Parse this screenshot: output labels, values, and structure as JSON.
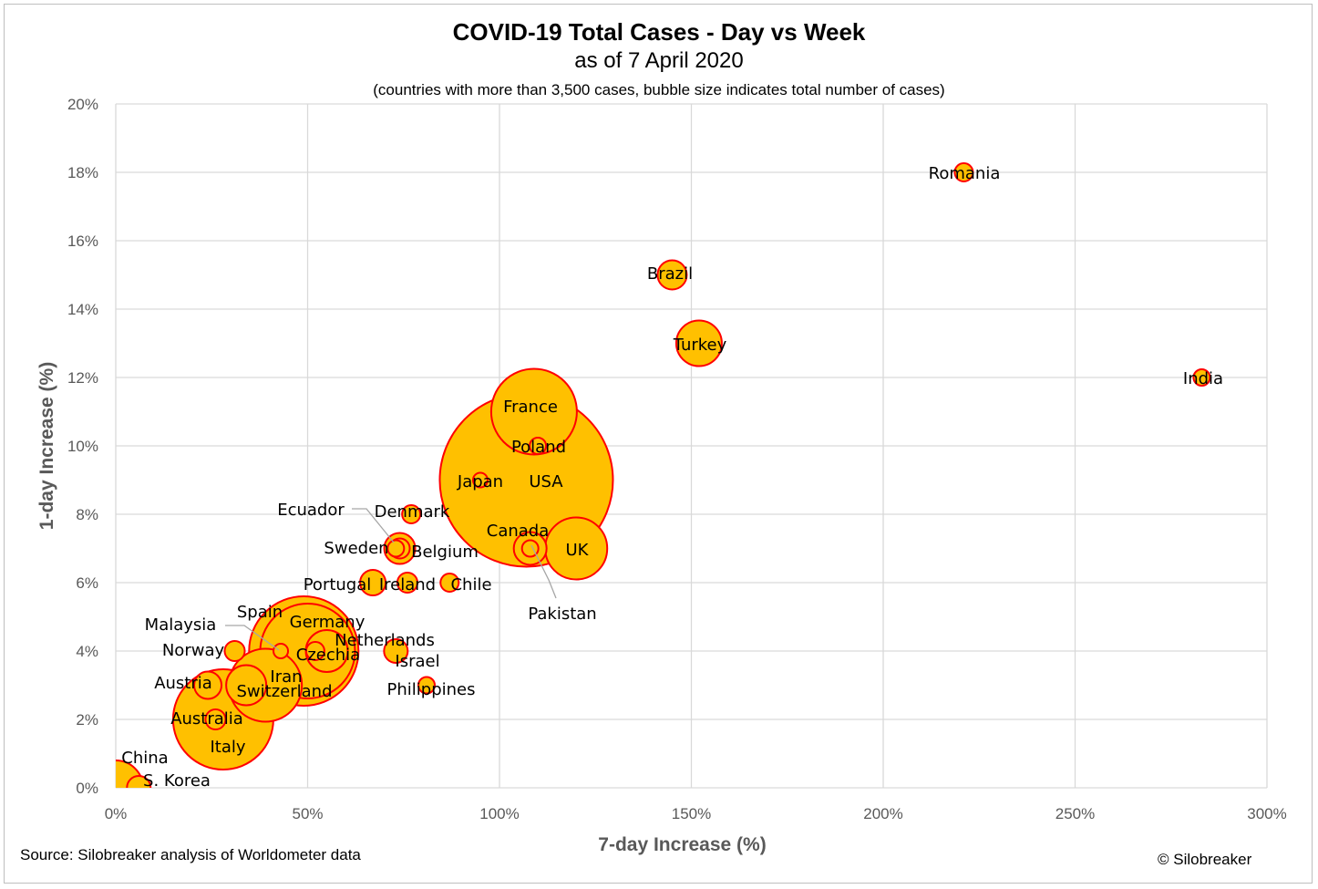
{
  "chart_data": {
    "type": "bubble",
    "title": "COVID-19 Total Cases - Day vs Week",
    "subtitle": "as of 7 April 2020",
    "note": "(countries with more than 3,500 cases, bubble size indicates total number of cases)",
    "xlabel": "7-day Increase (%)",
    "ylabel": "1-day Increase (%)",
    "xlim": [
      0,
      300
    ],
    "ylim": [
      0,
      20
    ],
    "x_ticks": [
      "0%",
      "50%",
      "100%",
      "150%",
      "200%",
      "250%",
      "300%"
    ],
    "y_ticks": [
      "0%",
      "2%",
      "4%",
      "6%",
      "8%",
      "10%",
      "12%",
      "14%",
      "16%",
      "18%",
      "20%"
    ],
    "grid": true,
    "colors": {
      "fill": "#FFC000",
      "stroke": "#FF0000",
      "grid": "#d9d9d9",
      "leader": "#a6a6a6"
    },
    "points": [
      {
        "label": "Romania",
        "x": 221,
        "y": 18
      },
      {
        "label": "Brazil",
        "x": 145,
        "y": 15
      },
      {
        "label": "Turkey",
        "x": 152,
        "y": 13
      },
      {
        "label": "India",
        "x": 283,
        "y": 12
      },
      {
        "label": "France",
        "x": 109,
        "y": 11
      },
      {
        "label": "Poland",
        "x": 110,
        "y": 10
      },
      {
        "label": "USA",
        "x": 107,
        "y": 9
      },
      {
        "label": "Japan",
        "x": 95,
        "y": 9
      },
      {
        "label": "Ecuador",
        "x": 73,
        "y": 7
      },
      {
        "label": "Denmark",
        "x": 77,
        "y": 8
      },
      {
        "label": "Sweden",
        "x": 74,
        "y": 7
      },
      {
        "label": "Belgium",
        "x": 74,
        "y": 7
      },
      {
        "label": "Canada",
        "x": 108,
        "y": 7
      },
      {
        "label": "UK",
        "x": 120,
        "y": 7
      },
      {
        "label": "Pakistan",
        "x": 108,
        "y": 7
      },
      {
        "label": "Portugal",
        "x": 67,
        "y": 6
      },
      {
        "label": "Ireland",
        "x": 76,
        "y": 6
      },
      {
        "label": "Chile",
        "x": 87,
        "y": 6
      },
      {
        "label": "Spain",
        "x": 49,
        "y": 4
      },
      {
        "label": "Germany",
        "x": 50,
        "y": 4
      },
      {
        "label": "Malaysia",
        "x": 43,
        "y": 4
      },
      {
        "label": "Netherlands",
        "x": 55,
        "y": 4
      },
      {
        "label": "Czechia",
        "x": 52,
        "y": 4
      },
      {
        "label": "Norway",
        "x": 31,
        "y": 4
      },
      {
        "label": "Israel",
        "x": 73,
        "y": 4
      },
      {
        "label": "Iran",
        "x": 39,
        "y": 3
      },
      {
        "label": "Switzerland",
        "x": 34,
        "y": 3
      },
      {
        "label": "Austria",
        "x": 24,
        "y": 3
      },
      {
        "label": "Philippines",
        "x": 81,
        "y": 3
      },
      {
        "label": "Australia",
        "x": 26,
        "y": 2
      },
      {
        "label": "Italy",
        "x": 28,
        "y": 2
      },
      {
        "label": "China",
        "x": 0,
        "y": 0
      },
      {
        "label": "S. Korea",
        "x": 6,
        "y": 0
      }
    ]
  },
  "footer": {
    "source": "Source: Silobreaker analysis of Worldometer data",
    "copyright": "© Silobreaker"
  }
}
